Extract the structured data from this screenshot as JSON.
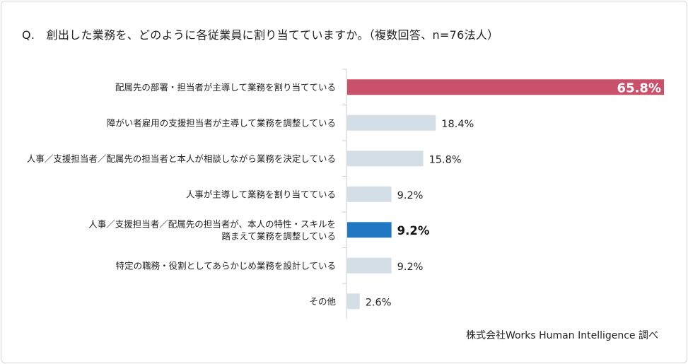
{
  "title": "Q.　創出した業務を、どのように各従業員に割り当てていますか。（複数回答、n=76法人）",
  "credit": "株式会社Works Human Intelligence 調べ",
  "colors": {
    "highlight_red": "#c9526a",
    "highlight_blue": "#1f78c1",
    "default_bar": "#d3dee6",
    "axis": "#cccccc"
  },
  "chart_data": {
    "type": "bar",
    "orientation": "horizontal",
    "title": "Q.　創出した業務を、どのように各従業員に割り当てていますか。（複数回答、n=76法人）",
    "xlim": [
      0,
      65.8
    ],
    "grid": false,
    "categories": [
      [
        "配属先の部署・担当者が主導して業務を割り当てている"
      ],
      [
        "障がい者雇用の支援担当者が主導して業務を調整している"
      ],
      [
        "人事／支援担当者／配属先の担当者と本人が相談しながら業務を決定している"
      ],
      [
        "人事が主導して業務を割り当てている"
      ],
      [
        "人事／支援担当者／配属先の担当者が、本人の特性・スキルを",
        "踏まえて業務を調整している"
      ],
      [
        "特定の職務・役割としてあらかじめ業務を設計している"
      ],
      [
        "その他"
      ]
    ],
    "values": [
      65.8,
      18.4,
      15.8,
      9.2,
      9.2,
      9.2,
      2.6
    ],
    "labels": [
      "65.8%",
      "18.4%",
      "15.8%",
      "9.2%",
      "9.2%",
      "9.2%",
      "2.6%"
    ],
    "bar_styles": [
      "highlight_red",
      "default",
      "default",
      "default",
      "highlight_blue",
      "default",
      "default"
    ]
  }
}
